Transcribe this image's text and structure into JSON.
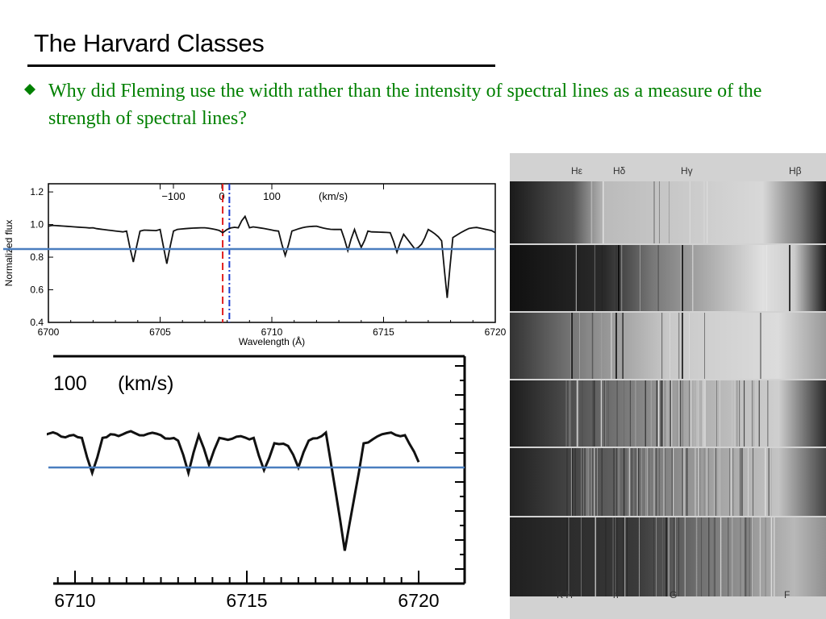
{
  "slide": {
    "title": "The Harvard Classes",
    "bullet": "Why did Fleming use the width rather than the intensity of spectral lines as a measure of the strength of spectral lines?",
    "bullet_symbol": "diamond-bullet-icon"
  },
  "colors": {
    "bullet_text": "#008000",
    "threshold_line": "#4a7ebf",
    "red_dashed": "#e02020",
    "blue_dashdot": "#1a3cd0"
  },
  "spectrum_plot": {
    "ylabel": "Normalized flux",
    "xlabel": "Wavelength (Å)",
    "yticks": [
      "1.2",
      "1.0",
      "0.8",
      "0.6",
      "0.4"
    ],
    "xticks": [
      "6700",
      "6705",
      "6710",
      "6715",
      "6720"
    ],
    "velocity_ticks": [
      "−100",
      "0",
      "100"
    ],
    "velocity_unit": "(km/s)"
  },
  "zoom_plot": {
    "velocity_tick": "100",
    "velocity_unit": "(km/s)",
    "xticks": [
      "6710",
      "6715",
      "6720"
    ]
  },
  "chart_data": [
    {
      "type": "line",
      "xlabel": "Wavelength (Å)",
      "ylabel": "Normalized flux",
      "xlim": [
        6700,
        6720
      ],
      "ylim": [
        0.4,
        1.25
      ],
      "series": [
        {
          "x": [
            6700,
            6702,
            6703.5,
            6703.8,
            6704.1,
            6705,
            6705.3,
            6705.6,
            6707,
            6707.8,
            6708,
            6708.5,
            6708.8,
            6709,
            6710.3,
            6710.6,
            6710.9,
            6712,
            6713.1,
            6713.4,
            6713.7,
            6714,
            6714.3,
            6715.3,
            6715.6,
            6715.9,
            6716.4,
            6716.7,
            6717,
            6717.6,
            6717.85,
            6718.1,
            6719,
            6720
          ],
          "y": [
            0.99,
            0.98,
            0.96,
            0.77,
            0.96,
            0.97,
            0.76,
            0.96,
            0.98,
            0.95,
            0.97,
            0.98,
            1.05,
            0.98,
            0.96,
            0.81,
            0.96,
            0.99,
            0.97,
            0.84,
            0.97,
            0.86,
            0.96,
            0.95,
            0.83,
            0.94,
            0.85,
            0.88,
            0.97,
            0.9,
            0.55,
            0.92,
            0.98,
            0.95
          ]
        }
      ],
      "threshold_y": 0.85,
      "markers": [
        {
          "x": 6707.8,
          "style": "dashed",
          "color": "#e02020"
        },
        {
          "x": 6708.1,
          "style": "dash-dot",
          "color": "#1a3cd0"
        }
      ]
    },
    {
      "type": "line",
      "xlim": [
        6709,
        6720
      ],
      "ylim": [
        0.5,
        1.1
      ],
      "series": [
        {
          "x": [
            6709,
            6710.2,
            6710.5,
            6710.8,
            6711.5,
            6712.5,
            6713,
            6713.3,
            6713.6,
            6713.9,
            6714.2,
            6715.2,
            6715.5,
            6715.8,
            6716.2,
            6716.5,
            6716.8,
            6717.3,
            6717.85,
            6718.4,
            6719.2,
            6719.6,
            6720
          ],
          "y": [
            0.99,
            0.97,
            0.84,
            0.97,
            0.99,
            0.98,
            0.96,
            0.84,
            0.98,
            0.87,
            0.97,
            0.97,
            0.85,
            0.95,
            0.94,
            0.86,
            0.96,
            0.99,
            0.55,
            0.95,
            0.99,
            0.98,
            0.88
          ]
        }
      ],
      "threshold_y": 0.86
    }
  ],
  "plate": {
    "top_labels": [
      "Hε",
      "Hδ",
      "Hγ",
      "Hβ"
    ],
    "bottom_labels": [
      "K H",
      "h",
      "G",
      "F"
    ]
  }
}
